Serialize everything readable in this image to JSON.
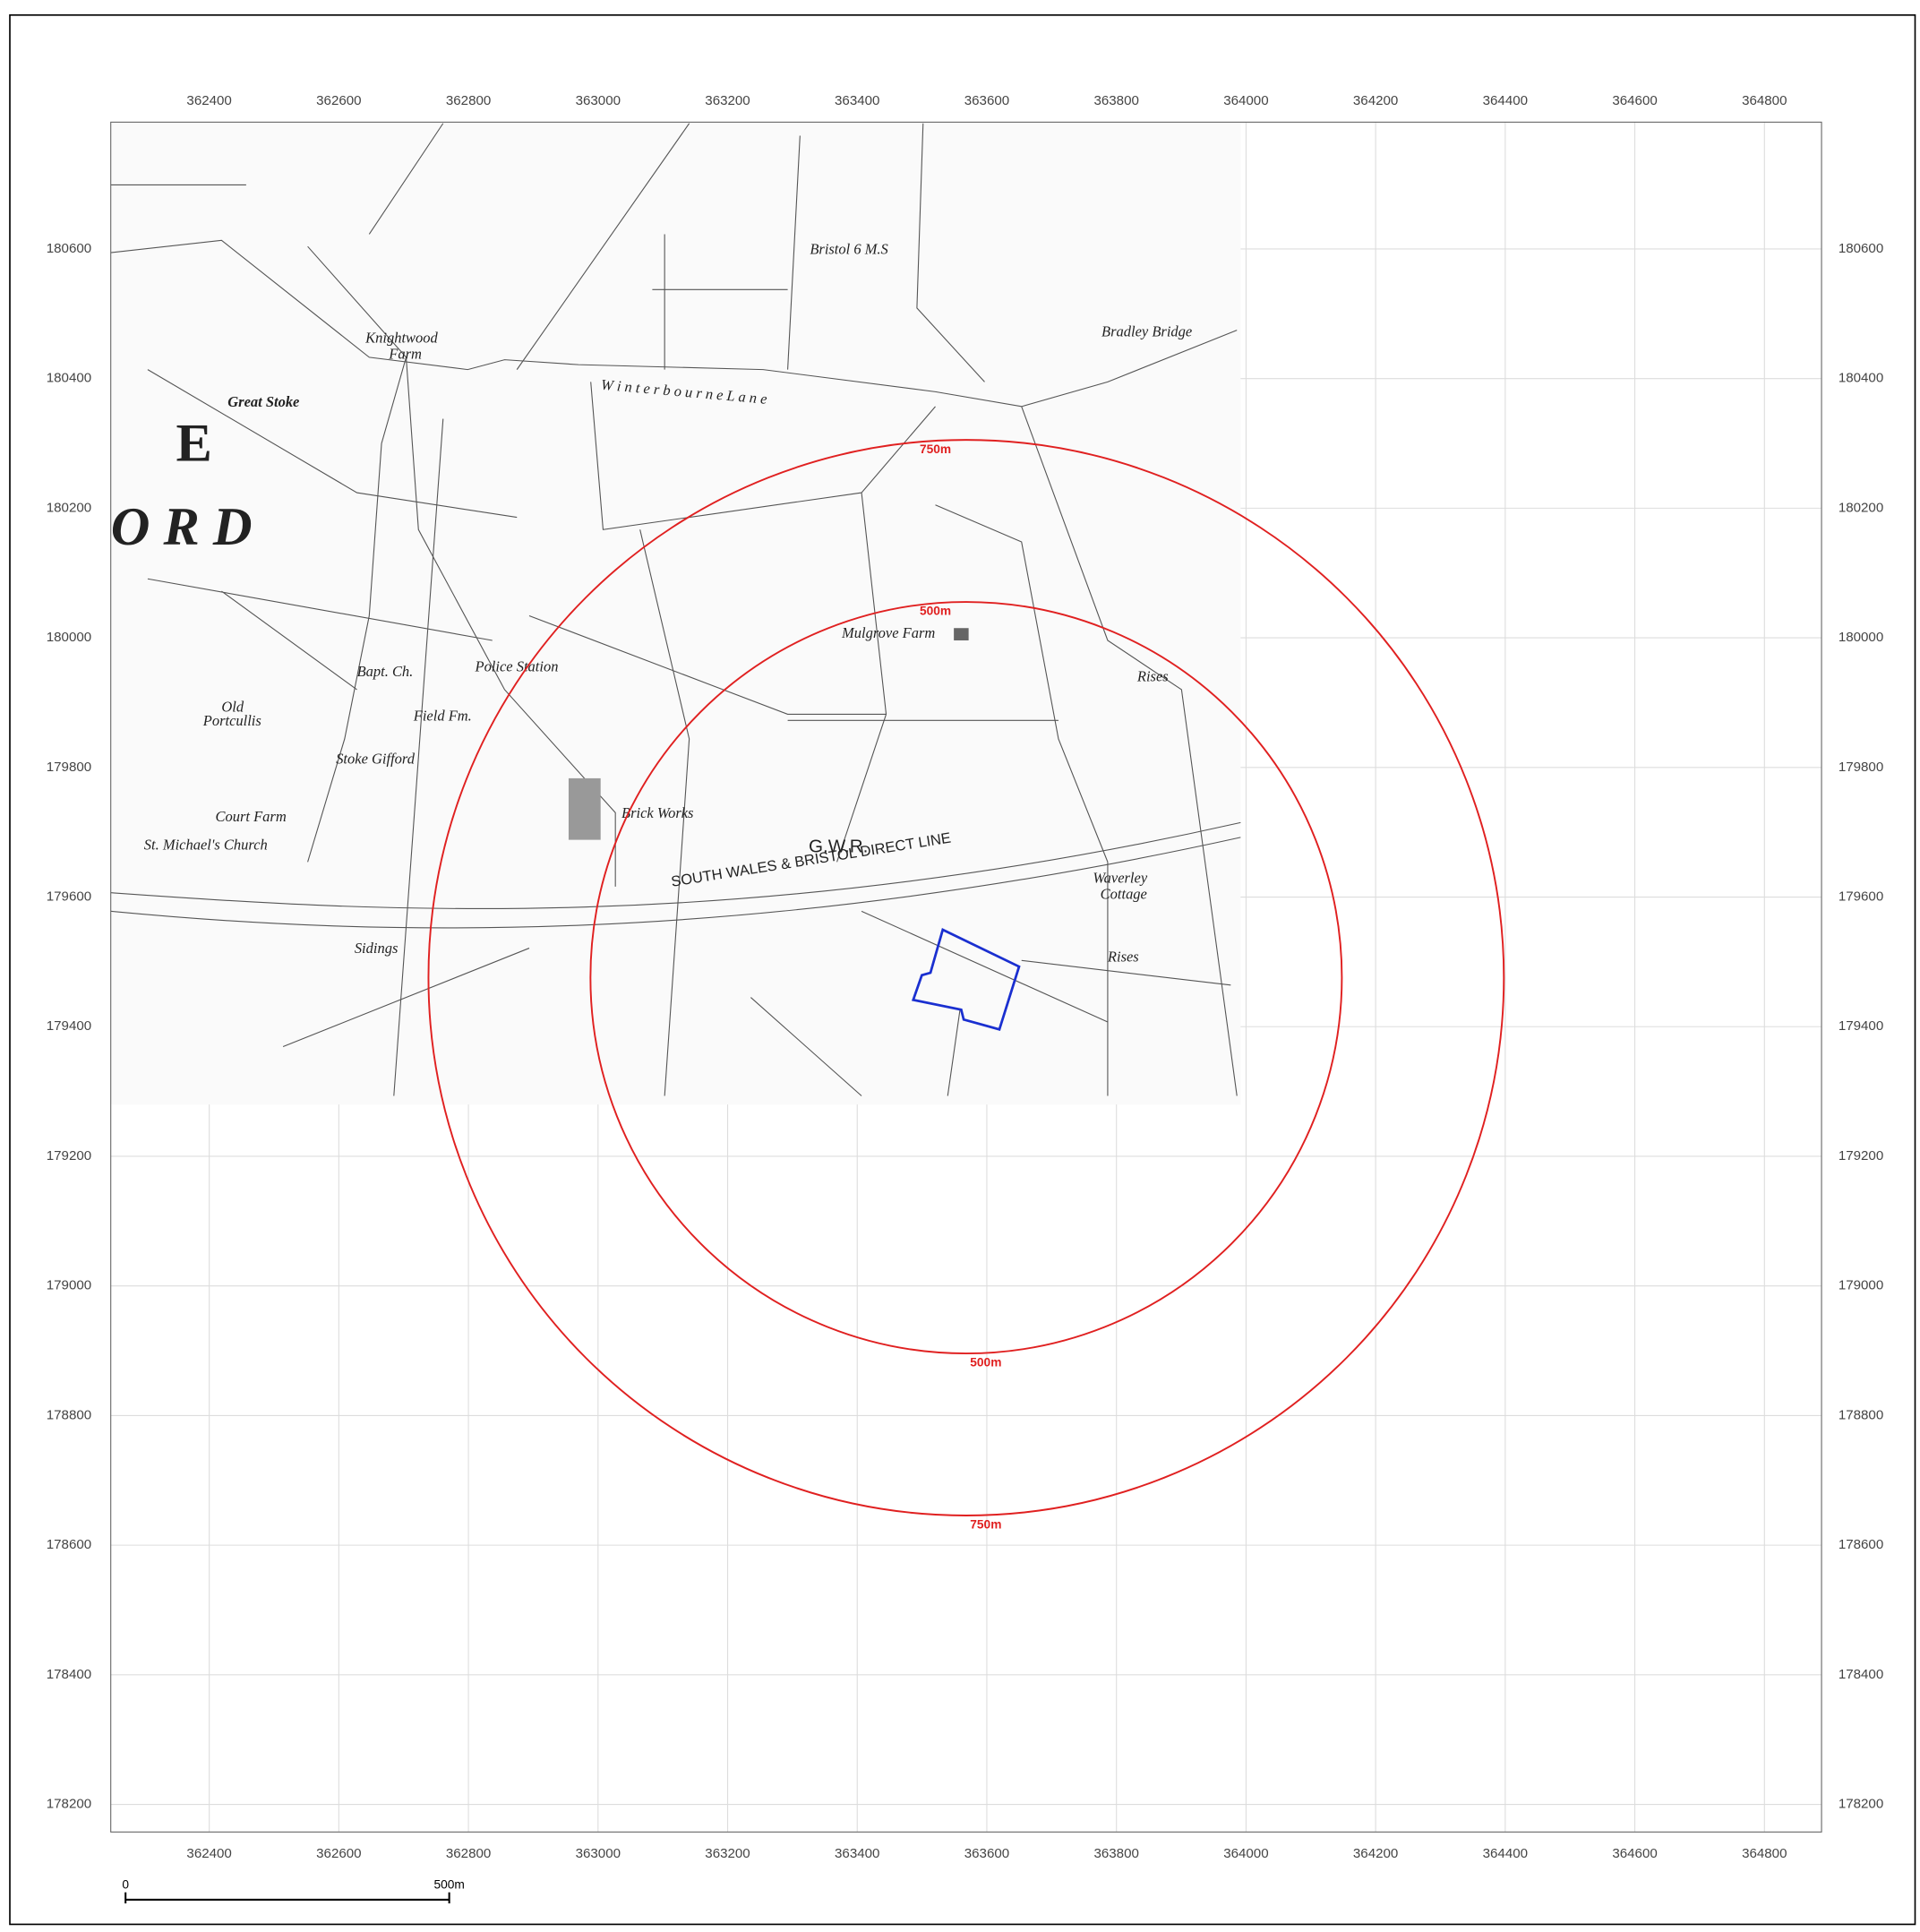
{
  "grid": {
    "eastings": [
      362400,
      362600,
      362800,
      363000,
      363200,
      363400,
      363600,
      363800,
      364000,
      364200,
      364400,
      364600,
      364800
    ],
    "northings": [
      180600,
      180400,
      180200,
      180000,
      179800,
      179600,
      179400,
      179200,
      179000,
      178800,
      178600,
      178400,
      178200
    ]
  },
  "buffers": [
    {
      "distance": 750,
      "label": "750m"
    },
    {
      "distance": 500,
      "label": "500m"
    }
  ],
  "scale_bar": {
    "start": "0",
    "end": "500m"
  },
  "map_labels": {
    "great_stoke": "Great Stoke",
    "stoke_gifford": "Stoke Gifford",
    "knightwood": "Knightwood",
    "farm": "Farm",
    "winterbourne": "W i n t e r b o u r n e   L a n e",
    "bradley": "Bradley Bridge",
    "bristol_ms": "Bristol 6  M.S",
    "mulgrove": "Mulgrove Farm",
    "brick": "Brick Works",
    "gwr": "G.W.R.",
    "line": "SOUTH WALES & BRISTOL DIRECT LINE",
    "waverley": "Waverley",
    "cottage": "Cottage",
    "court": "Court Farm",
    "church": "St. Michael's Church",
    "old": "Old",
    "portcullis": "Portcullis",
    "bapt": "Bapt. Ch.",
    "police": "Police Station",
    "field": "Field Fm.",
    "sidings": "Sidings",
    "rises": "Rises",
    "rises2": "Rises",
    "e": "E",
    "ord": "O  R  D"
  }
}
